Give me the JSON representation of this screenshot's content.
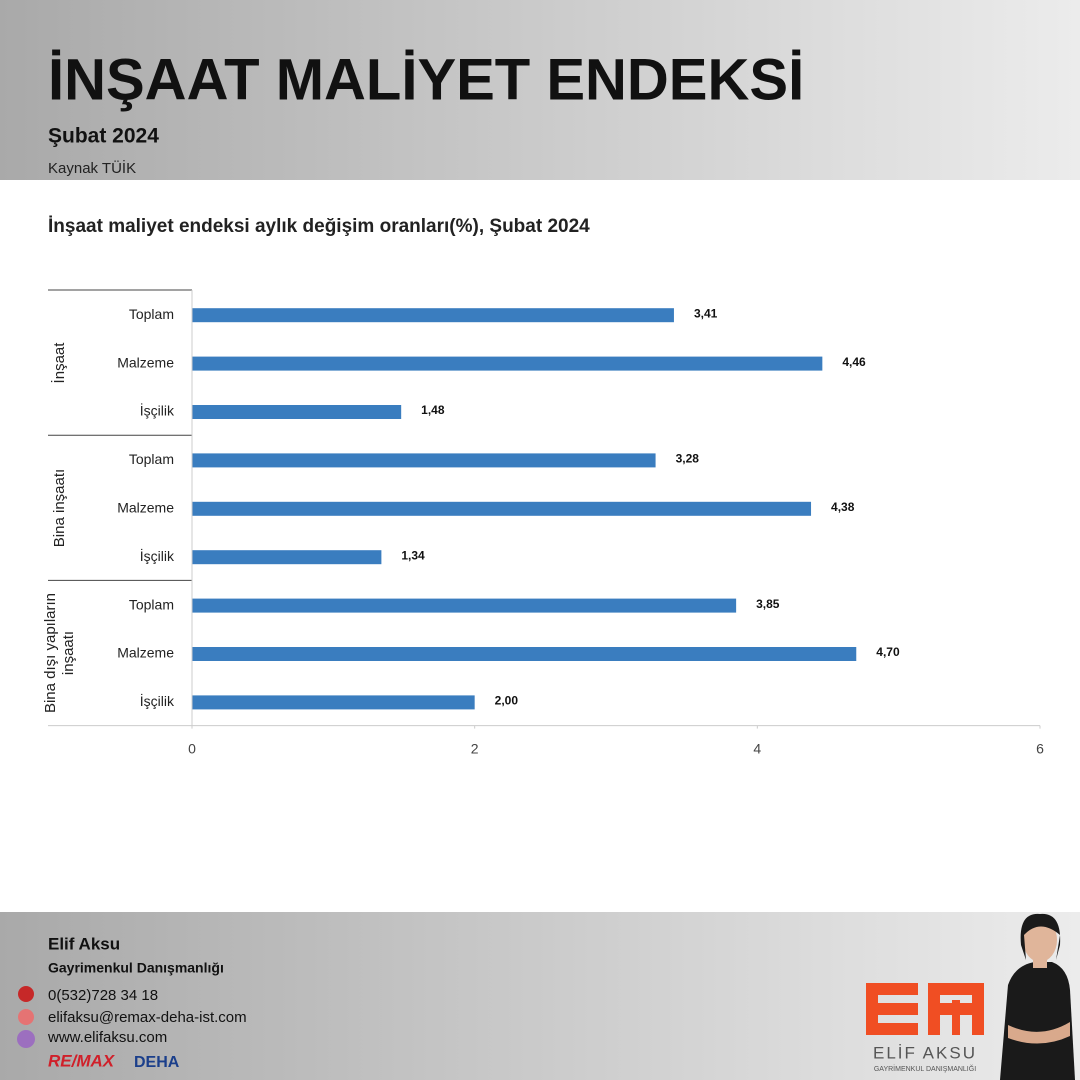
{
  "header": {
    "title": "İNŞAAT MALİYET ENDEKSİ",
    "subtitle": "Şubat 2024",
    "source": "Kaynak TÜİK"
  },
  "chart_data": {
    "type": "bar",
    "orientation": "horizontal",
    "title": "İnşaat maliyet endeksi aylık değişim oranları(%), Şubat 2024",
    "color": "#3a7dbf",
    "groups": [
      {
        "name": "İnşaat",
        "categories": [
          "Toplam",
          "Malzeme",
          "İşçilik"
        ],
        "values": [
          3.41,
          4.46,
          1.48
        ],
        "value_labels": [
          "3,41",
          "4,46",
          "1,48"
        ]
      },
      {
        "name": "Bina inşaatı",
        "categories": [
          "Toplam",
          "Malzeme",
          "İşçilik"
        ],
        "values": [
          3.28,
          4.38,
          1.34
        ],
        "value_labels": [
          "3,28",
          "4,38",
          "1,34"
        ]
      },
      {
        "name": "Bina dışı yapıların inşaatı",
        "categories": [
          "Toplam",
          "Malzeme",
          "İşçilik"
        ],
        "values": [
          3.85,
          4.7,
          2.0
        ],
        "value_labels": [
          "3,85",
          "4,70",
          "2,00"
        ]
      }
    ],
    "xlim": [
      0,
      6
    ],
    "xticks": [
      0,
      2,
      4,
      6
    ]
  },
  "footer": {
    "name": "Elif Aksu",
    "role": "Gayrimenkul Danışmanlığı",
    "phone": "0(532)728 34 18",
    "email": "elifaksu@remax-deha-ist.com",
    "website": "www.elifaksu.com",
    "agency": "RE/MAX",
    "agency_office": "DEHA",
    "logo_name": "ELİF AKSU",
    "logo_subtitle": "GAYRİMENKUL DANIŞMANLIĞI"
  }
}
